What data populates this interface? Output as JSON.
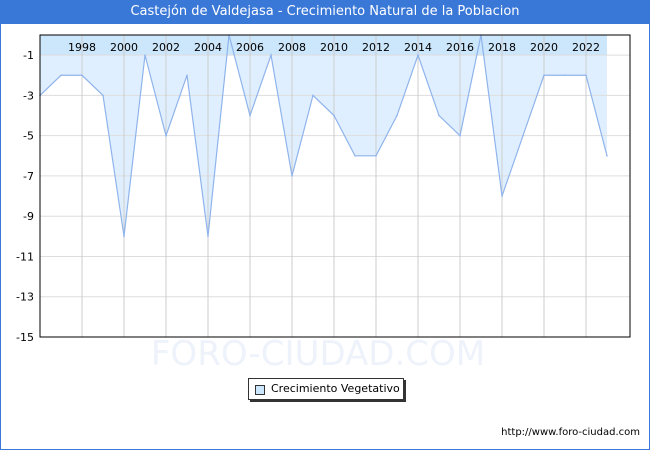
{
  "chart_data": {
    "type": "area",
    "title": "Castejón de Valdejasa - Crecimiento Natural de la Poblacion",
    "x": [
      1996,
      1997,
      1998,
      1999,
      2000,
      2001,
      2002,
      2003,
      2004,
      2005,
      2006,
      2007,
      2008,
      2009,
      2010,
      2011,
      2012,
      2013,
      2014,
      2015,
      2016,
      2017,
      2018,
      2019,
      2020,
      2021,
      2022,
      2023
    ],
    "series": [
      {
        "name": "Crecimiento Vegetativo",
        "values": [
          -3,
          -2,
          -2,
          -3,
          -10,
          -1,
          -5,
          -2,
          -10,
          0,
          -4,
          -1,
          -7,
          -3,
          -4,
          -6,
          -6,
          -4,
          -1,
          -4,
          -5,
          0,
          -8,
          -5,
          -2,
          -2,
          -2,
          -6
        ]
      }
    ],
    "x_ticks": [
      "1998",
      "2000",
      "2002",
      "2004",
      "2006",
      "2008",
      "2010",
      "2012",
      "2014",
      "2016",
      "2018",
      "2020",
      "2022"
    ],
    "y_ticks": [
      "-1",
      "-3",
      "-5",
      "-7",
      "-9",
      "-11",
      "-13",
      "-15"
    ],
    "ylim": [
      -15,
      0
    ],
    "xlim": [
      1996,
      2024
    ],
    "grid": true,
    "legend_position": "bottom-center",
    "colors": {
      "fill": "#e0efff",
      "band": "#cce6fb",
      "line": "#8fb4ec",
      "title_bg": "#3a78d8"
    }
  },
  "watermark": "FORO-CIUDAD.COM",
  "footer_url": "http://www.foro-ciudad.com"
}
